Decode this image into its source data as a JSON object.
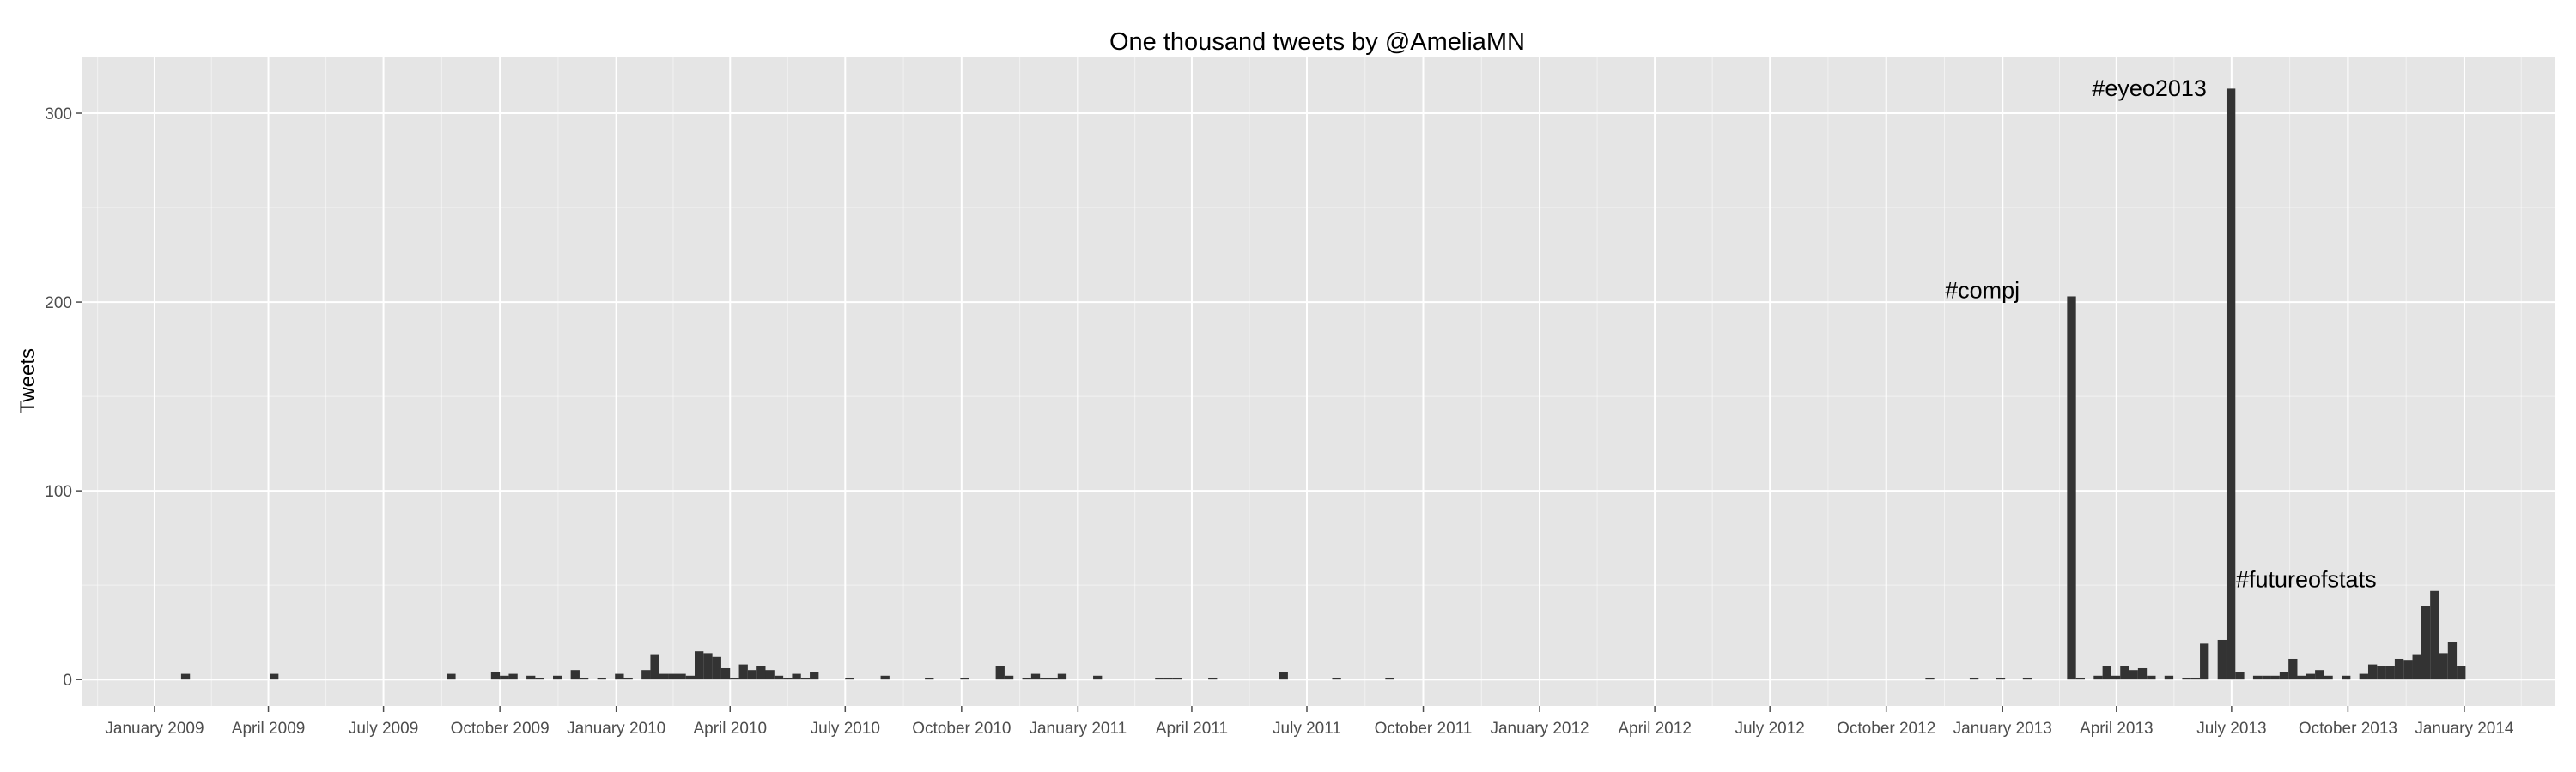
{
  "chart_data": {
    "type": "bar",
    "title": "One thousand tweets by @AmeliaMN",
    "xlabel": "",
    "ylabel": "Tweets",
    "ylim": [
      -14,
      330
    ],
    "y_ticks": [
      0,
      100,
      200,
      300
    ],
    "xlim": [
      "2008-11-05",
      "2014-03-14"
    ],
    "x_ticks": [
      {
        "date": "2009-01-01",
        "label": "January 2009"
      },
      {
        "date": "2009-04-01",
        "label": "April 2009"
      },
      {
        "date": "2009-07-01",
        "label": "July 2009"
      },
      {
        "date": "2009-10-01",
        "label": "October 2009"
      },
      {
        "date": "2010-01-01",
        "label": "January 2010"
      },
      {
        "date": "2010-04-01",
        "label": "April 2010"
      },
      {
        "date": "2010-07-01",
        "label": "July 2010"
      },
      {
        "date": "2010-10-01",
        "label": "October 2010"
      },
      {
        "date": "2011-01-01",
        "label": "January 2011"
      },
      {
        "date": "2011-04-01",
        "label": "April 2011"
      },
      {
        "date": "2011-07-01",
        "label": "July 2011"
      },
      {
        "date": "2011-10-01",
        "label": "October 2011"
      },
      {
        "date": "2012-01-01",
        "label": "January 2012"
      },
      {
        "date": "2012-04-01",
        "label": "April 2012"
      },
      {
        "date": "2012-07-01",
        "label": "July 2012"
      },
      {
        "date": "2012-10-01",
        "label": "October 2012"
      },
      {
        "date": "2013-01-01",
        "label": "January 2013"
      },
      {
        "date": "2013-04-01",
        "label": "April 2013"
      },
      {
        "date": "2013-07-01",
        "label": "July 2013"
      },
      {
        "date": "2013-10-01",
        "label": "October 2013"
      },
      {
        "date": "2014-01-01",
        "label": "January 2014"
      }
    ],
    "bin_width_days": 7,
    "bar_color": "#333333",
    "panel_background": "#e5e5e5",
    "grid_color": "#ffffff",
    "grid": true,
    "legend": "none",
    "bars": [
      {
        "date": "2009-01-22",
        "value": 3
      },
      {
        "date": "2009-04-02",
        "value": 3
      },
      {
        "date": "2009-08-20",
        "value": 3
      },
      {
        "date": "2009-09-24",
        "value": 4
      },
      {
        "date": "2009-10-01",
        "value": 2
      },
      {
        "date": "2009-10-08",
        "value": 3
      },
      {
        "date": "2009-10-22",
        "value": 2
      },
      {
        "date": "2009-10-29",
        "value": 1
      },
      {
        "date": "2009-11-12",
        "value": 2
      },
      {
        "date": "2009-11-26",
        "value": 5
      },
      {
        "date": "2009-12-03",
        "value": 1
      },
      {
        "date": "2009-12-17",
        "value": 1
      },
      {
        "date": "2009-12-31",
        "value": 3
      },
      {
        "date": "2010-01-07",
        "value": 1
      },
      {
        "date": "2010-01-21",
        "value": 5
      },
      {
        "date": "2010-01-28",
        "value": 13
      },
      {
        "date": "2010-02-04",
        "value": 3
      },
      {
        "date": "2010-02-11",
        "value": 3
      },
      {
        "date": "2010-02-18",
        "value": 3
      },
      {
        "date": "2010-02-25",
        "value": 2
      },
      {
        "date": "2010-03-04",
        "value": 15
      },
      {
        "date": "2010-03-11",
        "value": 14
      },
      {
        "date": "2010-03-18",
        "value": 12
      },
      {
        "date": "2010-03-25",
        "value": 6
      },
      {
        "date": "2010-04-01",
        "value": 1
      },
      {
        "date": "2010-04-08",
        "value": 8
      },
      {
        "date": "2010-04-15",
        "value": 5
      },
      {
        "date": "2010-04-22",
        "value": 7
      },
      {
        "date": "2010-04-29",
        "value": 5
      },
      {
        "date": "2010-05-06",
        "value": 2
      },
      {
        "date": "2010-05-13",
        "value": 1
      },
      {
        "date": "2010-05-20",
        "value": 3
      },
      {
        "date": "2010-05-27",
        "value": 1
      },
      {
        "date": "2010-06-03",
        "value": 4
      },
      {
        "date": "2010-07-01",
        "value": 1
      },
      {
        "date": "2010-07-29",
        "value": 2
      },
      {
        "date": "2010-09-02",
        "value": 1
      },
      {
        "date": "2010-09-30",
        "value": 1
      },
      {
        "date": "2010-10-28",
        "value": 7
      },
      {
        "date": "2010-11-04",
        "value": 2
      },
      {
        "date": "2010-11-18",
        "value": 1
      },
      {
        "date": "2010-11-25",
        "value": 3
      },
      {
        "date": "2010-12-02",
        "value": 1
      },
      {
        "date": "2010-12-09",
        "value": 1
      },
      {
        "date": "2010-12-16",
        "value": 3
      },
      {
        "date": "2011-01-13",
        "value": 2
      },
      {
        "date": "2011-03-03",
        "value": 1
      },
      {
        "date": "2011-03-10",
        "value": 1
      },
      {
        "date": "2011-03-17",
        "value": 1
      },
      {
        "date": "2011-04-14",
        "value": 1
      },
      {
        "date": "2011-06-09",
        "value": 4
      },
      {
        "date": "2011-07-21",
        "value": 1
      },
      {
        "date": "2011-09-01",
        "value": 1
      },
      {
        "date": "2012-11-01",
        "value": 1
      },
      {
        "date": "2012-12-06",
        "value": 1
      },
      {
        "date": "2012-12-27",
        "value": 1
      },
      {
        "date": "2013-01-17",
        "value": 1
      },
      {
        "date": "2013-02-21",
        "value": 203
      },
      {
        "date": "2013-02-28",
        "value": 1
      },
      {
        "date": "2013-03-14",
        "value": 2
      },
      {
        "date": "2013-03-21",
        "value": 7
      },
      {
        "date": "2013-03-28",
        "value": 2
      },
      {
        "date": "2013-04-04",
        "value": 7
      },
      {
        "date": "2013-04-11",
        "value": 5
      },
      {
        "date": "2013-04-18",
        "value": 6
      },
      {
        "date": "2013-04-25",
        "value": 2
      },
      {
        "date": "2013-05-09",
        "value": 2
      },
      {
        "date": "2013-05-23",
        "value": 1
      },
      {
        "date": "2013-05-30",
        "value": 1
      },
      {
        "date": "2013-06-06",
        "value": 19
      },
      {
        "date": "2013-06-20",
        "value": 21
      },
      {
        "date": "2013-06-27",
        "value": 313
      },
      {
        "date": "2013-07-04",
        "value": 4
      },
      {
        "date": "2013-07-18",
        "value": 2
      },
      {
        "date": "2013-07-25",
        "value": 2
      },
      {
        "date": "2013-08-01",
        "value": 2
      },
      {
        "date": "2013-08-08",
        "value": 4
      },
      {
        "date": "2013-08-15",
        "value": 11
      },
      {
        "date": "2013-08-22",
        "value": 2
      },
      {
        "date": "2013-08-29",
        "value": 3
      },
      {
        "date": "2013-09-05",
        "value": 5
      },
      {
        "date": "2013-09-12",
        "value": 2
      },
      {
        "date": "2013-09-26",
        "value": 2
      },
      {
        "date": "2013-10-10",
        "value": 3
      },
      {
        "date": "2013-10-17",
        "value": 8
      },
      {
        "date": "2013-10-24",
        "value": 7
      },
      {
        "date": "2013-10-31",
        "value": 7
      },
      {
        "date": "2013-11-07",
        "value": 11
      },
      {
        "date": "2013-11-14",
        "value": 10
      },
      {
        "date": "2013-11-21",
        "value": 13
      },
      {
        "date": "2013-11-28",
        "value": 39
      },
      {
        "date": "2013-12-05",
        "value": 47
      },
      {
        "date": "2013-12-12",
        "value": 14
      },
      {
        "date": "2013-12-19",
        "value": 20
      },
      {
        "date": "2013-12-26",
        "value": 7
      }
    ],
    "annotations": [
      {
        "text": "#compj",
        "date": "2012-12-16",
        "value": 202
      },
      {
        "text": "#eyeo2013",
        "date": "2013-04-27",
        "value": 309
      },
      {
        "text": "#futureofstats",
        "date": "2013-08-29",
        "value": 49
      }
    ]
  }
}
